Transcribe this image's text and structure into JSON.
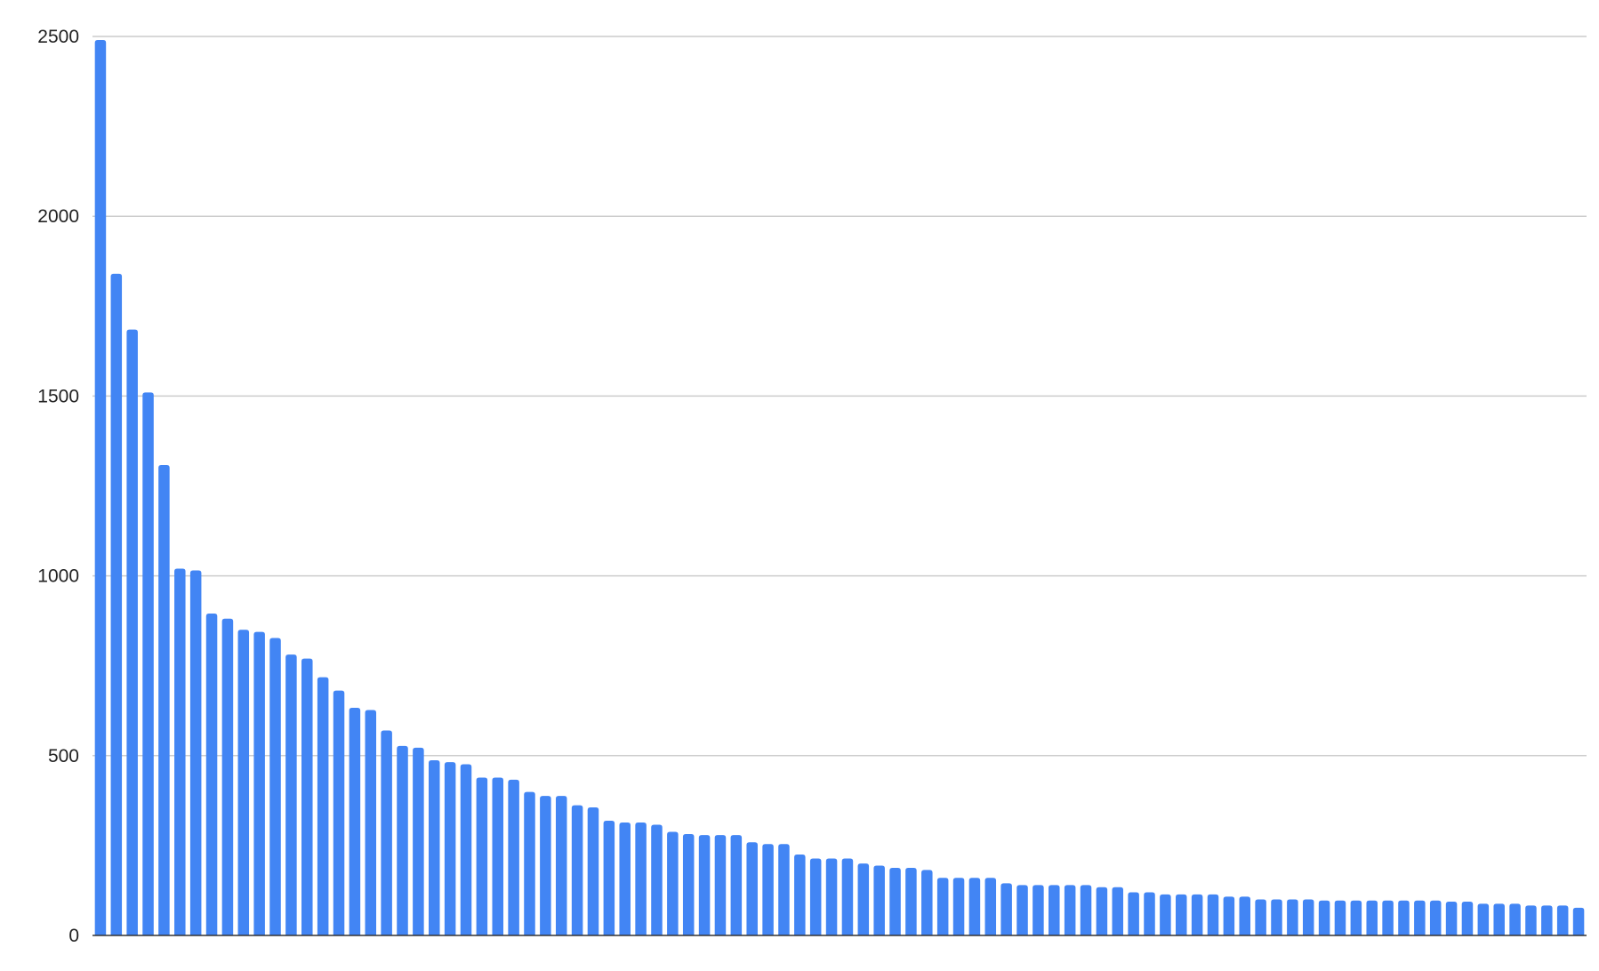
{
  "chart_data": {
    "type": "bar",
    "title": "",
    "xlabel": "",
    "ylabel": "",
    "ylim": [
      0,
      2500
    ],
    "yticks": [
      "0",
      "500",
      "1000",
      "1500",
      "2000",
      "2500"
    ],
    "grid": true,
    "legend": "none",
    "bar_color": "#4285f4",
    "gridline_color": "#cccccc",
    "values": [
      2490,
      1840,
      1685,
      1510,
      1308,
      1020,
      1015,
      895,
      881,
      850,
      844,
      827,
      781,
      770,
      718,
      681,
      633,
      627,
      570,
      527,
      522,
      487,
      482,
      476,
      439,
      439,
      433,
      399,
      388,
      388,
      362,
      356,
      319,
      314,
      314,
      308,
      288,
      282,
      279,
      279,
      279,
      259,
      254,
      254,
      225,
      214,
      214,
      214,
      200,
      194,
      188,
      188,
      182,
      160,
      160,
      160,
      160,
      145,
      140,
      140,
      140,
      140,
      140,
      134,
      134,
      120,
      120,
      114,
      114,
      114,
      114,
      108,
      108,
      100,
      100,
      100,
      100,
      97,
      97,
      97,
      97,
      97,
      97,
      97,
      97,
      94,
      94,
      88,
      88,
      88,
      83,
      83,
      83,
      77
    ]
  }
}
